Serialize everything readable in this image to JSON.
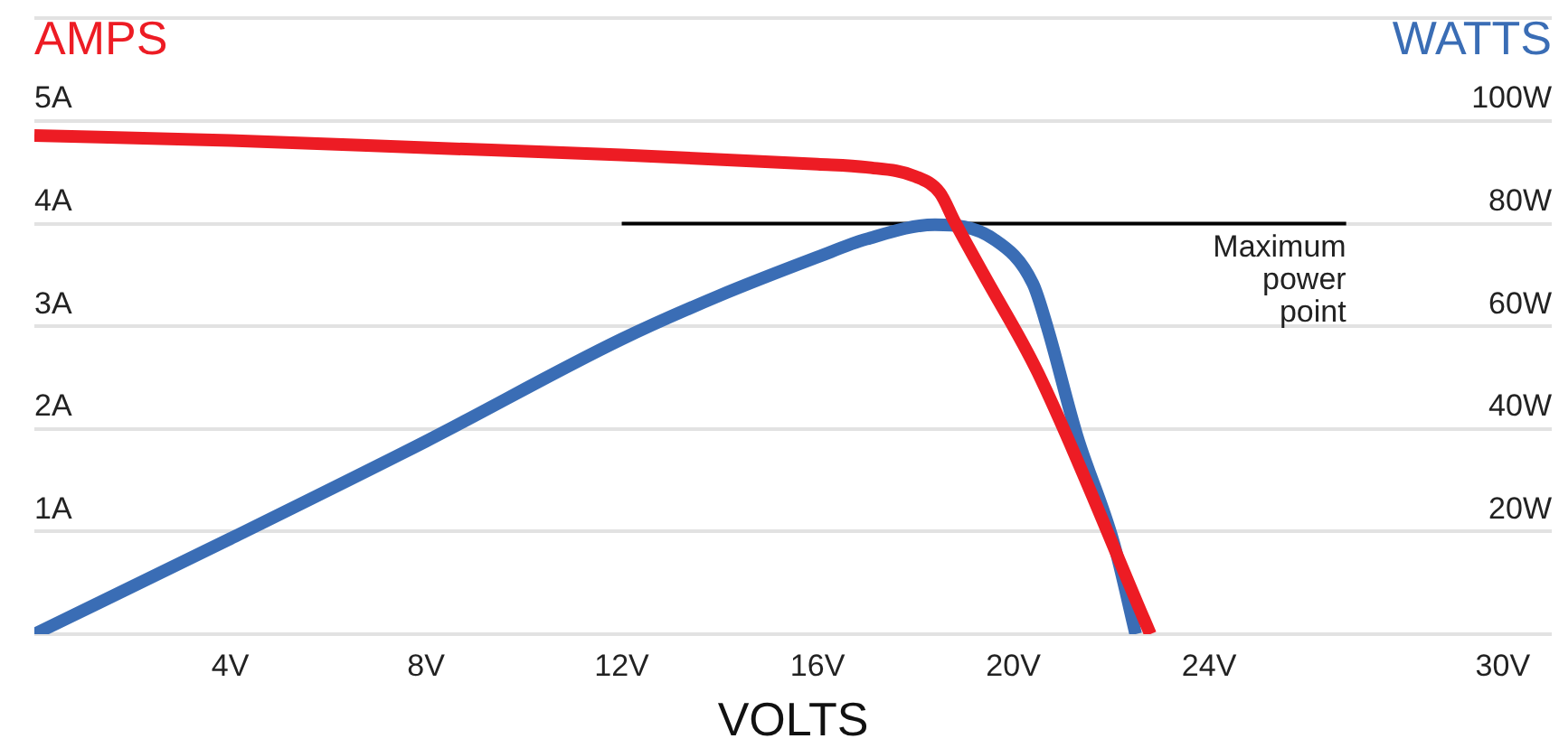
{
  "chart_data": {
    "type": "line",
    "xlabel": "VOLTS",
    "ylabel": "AMPS",
    "y2label": "WATTS",
    "xlim": [
      0,
      31
    ],
    "ylim": [
      0,
      6
    ],
    "y2lim": [
      0,
      120
    ],
    "xticks": [
      {
        "value": 4,
        "label": "4V"
      },
      {
        "value": 8,
        "label": "8V"
      },
      {
        "value": 12,
        "label": "12V"
      },
      {
        "value": 16,
        "label": "16V"
      },
      {
        "value": 20,
        "label": "20V"
      },
      {
        "value": 24,
        "label": "24V"
      },
      {
        "value": 30,
        "label": "30V"
      }
    ],
    "yticks": [
      {
        "value": 0,
        "label": null
      },
      {
        "value": 1,
        "label": "1A"
      },
      {
        "value": 2,
        "label": "2A"
      },
      {
        "value": 3,
        "label": "3A"
      },
      {
        "value": 4,
        "label": "4A"
      },
      {
        "value": 5,
        "label": "5A"
      },
      {
        "value": 6,
        "label": null
      }
    ],
    "y2ticks": [
      {
        "value": 0,
        "label": null
      },
      {
        "value": 20,
        "label": "20W"
      },
      {
        "value": 40,
        "label": "40W"
      },
      {
        "value": 60,
        "label": "60W"
      },
      {
        "value": 80,
        "label": "80W"
      },
      {
        "value": 100,
        "label": "100W"
      },
      {
        "value": 120,
        "label": null
      }
    ],
    "grid": "y",
    "legend": false,
    "marker": "none",
    "line_style": "solid",
    "series": [
      {
        "color": "#ed1c24",
        "x": [
          0,
          4,
          8,
          12,
          16,
          17,
          18,
          18.5,
          18.8,
          19.4,
          20.5,
          22.8
        ],
        "values": [
          4.86,
          4.81,
          4.74,
          4.67,
          4.58,
          4.55,
          4.46,
          4.3,
          4.02,
          3.5,
          2.55,
          0
        ]
      },
      {
        "color": "#3a6db5",
        "axis": "y2",
        "x": [
          0,
          4,
          8,
          12,
          14,
          16,
          17,
          18.4,
          19.6,
          20.4,
          20.7,
          21.3,
          22.05,
          22.5
        ],
        "values": [
          0,
          18.6,
          37.6,
          57.5,
          66,
          73.5,
          77,
          79.8,
          77,
          68.3,
          59.6,
          38.7,
          17.8,
          0
        ]
      },
      {
        "color": "#000000",
        "axis": "y2",
        "x": [
          12,
          26.8
        ],
        "values": [
          80,
          80
        ]
      }
    ],
    "annotations": [
      {
        "text": "Maximum power point",
        "x": 26.8,
        "y": 4
      }
    ]
  }
}
